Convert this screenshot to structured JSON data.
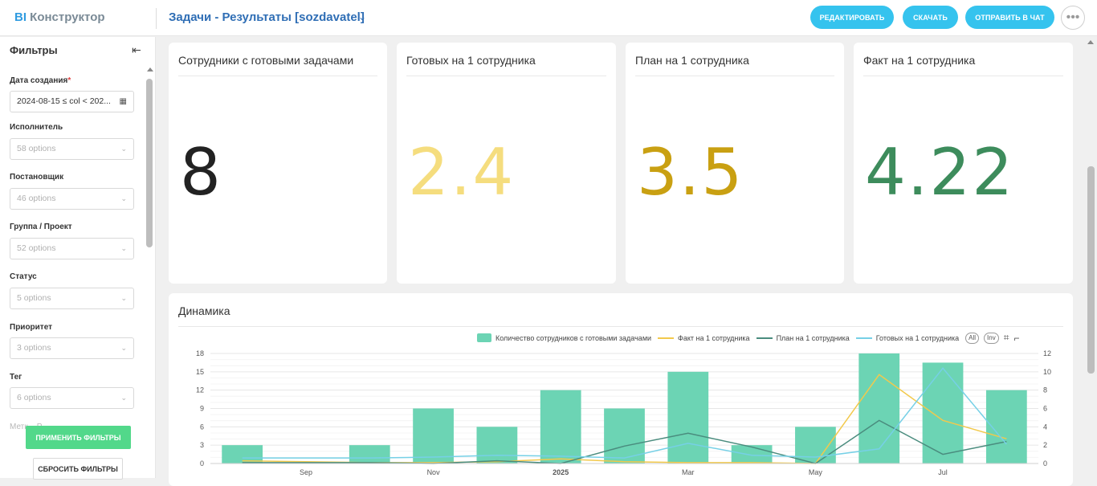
{
  "header": {
    "logo_bi": "BI",
    "logo_text": "Конструктор",
    "dashboard_title": "Задачи - Результаты [sozdavatel]",
    "buttons": {
      "edit": "РЕДАКТИРОВАТЬ",
      "download": "СКАЧАТЬ",
      "send": "ОТПРАВИТЬ В ЧАТ"
    }
  },
  "sidebar": {
    "title": "Фильтры",
    "filters": [
      {
        "label": "Дата создания",
        "required": "*",
        "value": "2024-08-15 ≤ col < 202..."
      },
      {
        "label": "Исполнитель",
        "value": "58 options"
      },
      {
        "label": "Постановщик",
        "value": "46 options"
      },
      {
        "label": "Группа / Проект",
        "value": "52 options"
      },
      {
        "label": "Статус",
        "value": "5 options"
      },
      {
        "label": "Приоритет",
        "value": "3 options"
      },
      {
        "label": "Тег",
        "value": "6 options"
      }
    ],
    "partial_label": "Метк... Р...",
    "apply": "ПРИМЕНИТЬ ФИЛЬТРЫ",
    "reset": "СБРОСИТЬ ФИЛЬТРЫ"
  },
  "kpis": [
    {
      "title": "Сотрудники с готовыми задачами",
      "value": "8",
      "color": "#222222"
    },
    {
      "title": "Готовых на 1 сотрудника",
      "value": "2.4",
      "color": "#f5dd7e"
    },
    {
      "title": "План на 1 сотрудника",
      "value": "3.5",
      "color": "#c9a012"
    },
    {
      "title": "Факт на 1 сотрудника",
      "value": "4.22",
      "color": "#3d8c5c"
    }
  ],
  "chart": {
    "title": "Динамика",
    "legend": {
      "bar": "Количество сотрудников с готовыми задачами",
      "fact": "Факт на 1 сотрудника",
      "plan": "План на 1 сотрудника",
      "ready": "Готовых на 1 сотрудника",
      "all": "All",
      "inv": "Inv"
    }
  },
  "chart_data": {
    "type": "bar",
    "title": "Динамика",
    "x_ticks": [
      "Sep",
      "Nov",
      "2025",
      "Mar",
      "May",
      "Jul"
    ],
    "y_left": {
      "ticks": [
        0,
        3,
        6,
        9,
        12,
        15,
        18
      ],
      "range": [
        0,
        18
      ]
    },
    "y_right": {
      "ticks": [
        0,
        2,
        4,
        6,
        8,
        10,
        12
      ],
      "range": [
        0,
        12
      ]
    },
    "x": [
      "2024-08",
      "2024-09",
      "2024-10",
      "2024-11",
      "2024-12",
      "2025-01",
      "2025-02",
      "2025-03",
      "2025-04",
      "2025-05",
      "2025-06",
      "2025-07",
      "2025-08"
    ],
    "series": [
      {
        "name": "Количество сотрудников с готовыми задачами",
        "kind": "bar",
        "axis": "left",
        "color": "#6cd4b4",
        "values": [
          3,
          0,
          3,
          9,
          6,
          12,
          9,
          15,
          3,
          6,
          18,
          16.5,
          12
        ]
      },
      {
        "name": "Факт на 1 сотрудника",
        "kind": "line",
        "axis": "right",
        "color": "#f2c94c",
        "values": [
          0.3,
          0.2,
          0.1,
          0.1,
          0.2,
          0.5,
          0.2,
          0.1,
          0.1,
          0,
          9.7,
          4.7,
          2.7
        ]
      },
      {
        "name": "План на 1 сотрудника",
        "kind": "line",
        "axis": "right",
        "color": "#4a8c7e",
        "values": [
          0.1,
          0.1,
          0.1,
          0,
          0.3,
          0,
          1.9,
          3.3,
          1.8,
          0,
          4.7,
          1,
          2.4
        ]
      },
      {
        "name": "Готовых на 1 сотрудника",
        "kind": "line",
        "axis": "right",
        "color": "#76d0e6",
        "values": [
          0.6,
          0.6,
          0.6,
          0.7,
          0.9,
          0.8,
          0.6,
          2.2,
          0.9,
          0.7,
          1.6,
          10.4,
          2.1
        ]
      }
    ]
  }
}
